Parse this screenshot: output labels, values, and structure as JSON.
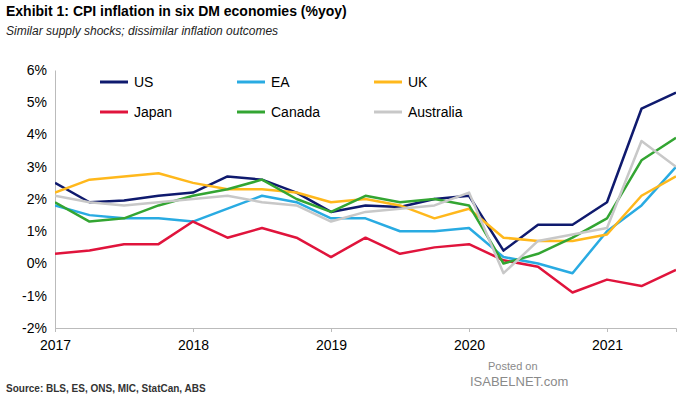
{
  "chart_data": {
    "type": "line",
    "title": "Exhibit 1: CPI inflation in six DM economies (%yoy)",
    "subtitle": "Similar supply shocks; dissimilar inflation outcomes",
    "source": "Source: BLS, ES, ONS, MIC, StatCan, ABS",
    "annotations": [
      "Posted on",
      "ISABELNET.com"
    ],
    "categories": [
      "2017",
      null,
      null,
      null,
      "2018",
      null,
      null,
      null,
      "2019",
      null,
      null,
      null,
      "2020",
      null,
      null,
      null,
      "2021",
      null,
      null
    ],
    "series": [
      {
        "name": "US",
        "color": "#0f1a6e",
        "values": [
          2.5,
          1.9,
          1.95,
          2.1,
          2.2,
          2.7,
          2.6,
          2.2,
          1.6,
          1.8,
          1.75,
          2.0,
          2.1,
          0.4,
          1.2,
          1.2,
          1.9,
          4.8,
          5.3
        ]
      },
      {
        "name": "EA",
        "color": "#29abe2",
        "values": [
          1.8,
          1.5,
          1.4,
          1.4,
          1.3,
          1.7,
          2.1,
          1.9,
          1.4,
          1.4,
          1.0,
          1.0,
          1.1,
          0.2,
          0.0,
          -0.3,
          1.0,
          1.8,
          3.0
        ]
      },
      {
        "name": "UK",
        "color": "#ffb81c",
        "values": [
          2.2,
          2.6,
          2.7,
          2.8,
          2.5,
          2.3,
          2.3,
          2.2,
          1.9,
          2.0,
          1.8,
          1.4,
          1.7,
          0.8,
          0.7,
          0.7,
          0.9,
          2.1,
          2.7
        ]
      },
      {
        "name": "Japan",
        "color": "#e0143c",
        "values": [
          0.3,
          0.4,
          0.6,
          0.6,
          1.3,
          0.8,
          1.1,
          0.8,
          0.2,
          0.8,
          0.3,
          0.5,
          0.6,
          0.1,
          -0.1,
          -0.9,
          -0.5,
          -0.7,
          -0.2
        ]
      },
      {
        "name": "Canada",
        "color": "#33a532",
        "values": [
          1.9,
          1.3,
          1.4,
          1.8,
          2.1,
          2.3,
          2.6,
          2.0,
          1.6,
          2.1,
          1.9,
          2.0,
          1.8,
          0.0,
          0.3,
          0.8,
          1.4,
          3.2,
          3.9
        ]
      },
      {
        "name": "Australia",
        "color": "#c8c8c8",
        "values": [
          2.1,
          1.9,
          1.8,
          1.9,
          2.0,
          2.1,
          1.9,
          1.8,
          1.3,
          1.6,
          1.7,
          1.8,
          2.2,
          -0.3,
          0.7,
          0.9,
          1.1,
          3.8,
          3.0
        ]
      }
    ],
    "ylim": [
      -2,
      6
    ],
    "yticks": [
      {
        "value": -2,
        "label": "-2%"
      },
      {
        "value": -1,
        "label": "-1%"
      },
      {
        "value": 0,
        "label": "0%"
      },
      {
        "value": 1,
        "label": "1%"
      },
      {
        "value": 2,
        "label": "2%"
      },
      {
        "value": 3,
        "label": "3%"
      },
      {
        "value": 4,
        "label": "4%"
      },
      {
        "value": 5,
        "label": "5%"
      },
      {
        "value": 6,
        "label": "6%"
      }
    ],
    "grid": false,
    "legend": "top-left"
  }
}
